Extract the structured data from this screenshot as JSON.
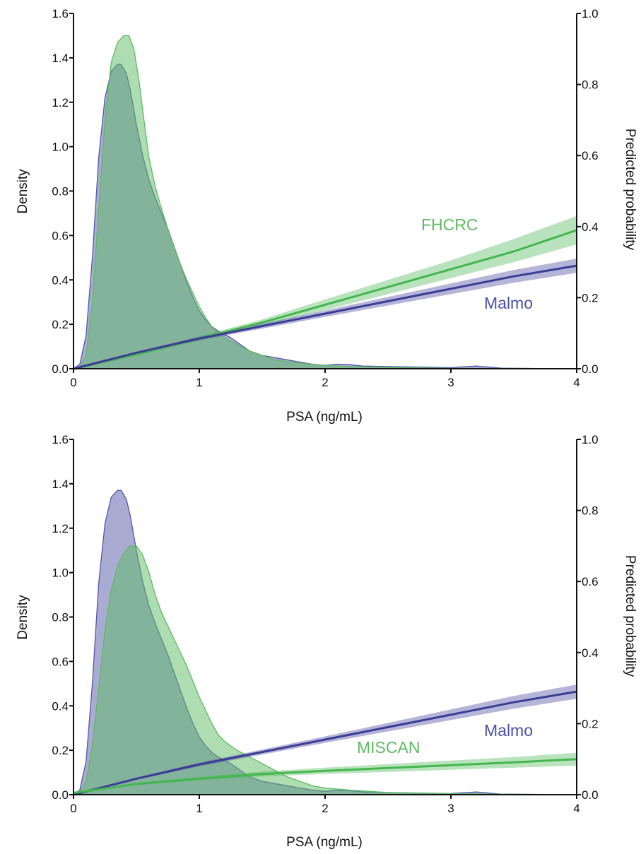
{
  "chart_data": [
    {
      "type": "area",
      "title": "",
      "xlabel": "PSA (ng/mL)",
      "ylabel": "Density",
      "y2label": "Predicted probability",
      "xlim": [
        0,
        4
      ],
      "ylim": [
        0,
        1.6
      ],
      "y2lim": [
        0,
        1.0
      ],
      "xticks": [
        "0",
        "1",
        "2",
        "3",
        "4"
      ],
      "yticks": [
        "0.0",
        "0.2",
        "0.4",
        "0.6",
        "0.8",
        "1.0",
        "1.2",
        "1.4",
        "1.6"
      ],
      "y2ticks": [
        "0.0",
        "0.2",
        "0.4",
        "0.6",
        "0.8",
        "1.0"
      ],
      "grid": false,
      "density_series": [
        {
          "name": "Malmo",
          "color": "#5558a8",
          "x": [
            0,
            0.05,
            0.1,
            0.15,
            0.2,
            0.25,
            0.3,
            0.35,
            0.38,
            0.42,
            0.45,
            0.5,
            0.55,
            0.6,
            0.65,
            0.7,
            0.75,
            0.8,
            0.85,
            0.9,
            0.95,
            1.0,
            1.05,
            1.1,
            1.15,
            1.2,
            1.25,
            1.3,
            1.35,
            1.4,
            1.5,
            1.6,
            1.7,
            1.8,
            1.9,
            2.0,
            2.1,
            2.2,
            2.3,
            2.5,
            2.7,
            3.0,
            3.2,
            3.4,
            3.7,
            4.0
          ],
          "y": [
            0.0,
            0.02,
            0.15,
            0.5,
            0.95,
            1.22,
            1.34,
            1.37,
            1.37,
            1.33,
            1.26,
            1.1,
            0.96,
            0.85,
            0.77,
            0.7,
            0.63,
            0.55,
            0.47,
            0.39,
            0.32,
            0.26,
            0.22,
            0.19,
            0.17,
            0.155,
            0.14,
            0.12,
            0.1,
            0.08,
            0.06,
            0.05,
            0.04,
            0.03,
            0.02,
            0.015,
            0.02,
            0.018,
            0.012,
            0.01,
            0.008,
            0.005,
            0.012,
            0.003,
            0.001,
            0.0
          ]
        },
        {
          "name": "FHCRC",
          "color": "#5dbb63",
          "x": [
            0,
            0.05,
            0.1,
            0.15,
            0.2,
            0.25,
            0.3,
            0.35,
            0.4,
            0.44,
            0.48,
            0.52,
            0.56,
            0.6,
            0.65,
            0.7,
            0.75,
            0.8,
            0.85,
            0.9,
            0.95,
            1.0,
            1.05,
            1.1,
            1.15,
            1.2,
            1.3,
            1.4,
            1.5,
            1.6,
            1.8,
            2.0,
            2.2,
            2.5,
            3.0,
            3.5,
            4.0
          ],
          "y": [
            0.0,
            0.01,
            0.06,
            0.3,
            0.72,
            1.12,
            1.38,
            1.47,
            1.5,
            1.5,
            1.44,
            1.3,
            1.12,
            0.95,
            0.82,
            0.72,
            0.63,
            0.55,
            0.47,
            0.4,
            0.34,
            0.28,
            0.23,
            0.19,
            0.16,
            0.14,
            0.11,
            0.08,
            0.06,
            0.04,
            0.025,
            0.015,
            0.01,
            0.005,
            0.002,
            0.001,
            0.0
          ]
        }
      ],
      "probability_series": [
        {
          "name": "FHCRC",
          "color": "#45b64f",
          "x": [
            0,
            0.5,
            1.0,
            1.5,
            2.0,
            2.5,
            3.0,
            3.5,
            4.0
          ],
          "y": [
            0.0,
            0.04,
            0.085,
            0.13,
            0.18,
            0.23,
            0.28,
            0.33,
            0.39
          ],
          "lower": [
            0.0,
            0.037,
            0.079,
            0.121,
            0.165,
            0.21,
            0.255,
            0.3,
            0.35
          ],
          "upper": [
            0.0,
            0.043,
            0.091,
            0.139,
            0.195,
            0.25,
            0.305,
            0.365,
            0.43
          ]
        },
        {
          "name": "Malmo",
          "color": "#3c3c97",
          "x": [
            0,
            0.5,
            1.0,
            1.5,
            2.0,
            2.5,
            3.0,
            3.5,
            4.0
          ],
          "y": [
            0.0,
            0.045,
            0.085,
            0.12,
            0.155,
            0.19,
            0.225,
            0.26,
            0.29
          ],
          "lower": [
            0.0,
            0.042,
            0.08,
            0.113,
            0.146,
            0.178,
            0.21,
            0.242,
            0.27
          ],
          "upper": [
            0.0,
            0.048,
            0.09,
            0.127,
            0.164,
            0.202,
            0.24,
            0.278,
            0.31
          ]
        }
      ],
      "labels": [
        {
          "text": "FHCRC",
          "color": "#5dbb63"
        },
        {
          "text": "Malmo",
          "color": "#4b4fa5"
        }
      ]
    },
    {
      "type": "area",
      "title": "",
      "xlabel": "PSA (ng/mL)",
      "ylabel": "Density",
      "y2label": "Predicted probability",
      "xlim": [
        0,
        4
      ],
      "ylim": [
        0,
        1.6
      ],
      "y2lim": [
        0,
        1.0
      ],
      "xticks": [
        "0",
        "1",
        "2",
        "3",
        "4"
      ],
      "yticks": [
        "0.0",
        "0.2",
        "0.4",
        "0.6",
        "0.8",
        "1.0",
        "1.2",
        "1.4",
        "1.6"
      ],
      "y2ticks": [
        "0.0",
        "0.2",
        "0.4",
        "0.6",
        "0.8",
        "1.0"
      ],
      "grid": false,
      "density_series": [
        {
          "name": "Malmo",
          "color": "#5558a8",
          "x": [
            0,
            0.05,
            0.1,
            0.15,
            0.2,
            0.25,
            0.3,
            0.35,
            0.38,
            0.42,
            0.45,
            0.5,
            0.55,
            0.6,
            0.65,
            0.7,
            0.75,
            0.8,
            0.85,
            0.9,
            0.95,
            1.0,
            1.05,
            1.1,
            1.15,
            1.2,
            1.25,
            1.3,
            1.35,
            1.4,
            1.5,
            1.6,
            1.7,
            1.8,
            1.9,
            2.0,
            2.1,
            2.2,
            2.3,
            2.5,
            2.7,
            3.0,
            3.2,
            3.4,
            3.7,
            4.0
          ],
          "y": [
            0.0,
            0.02,
            0.15,
            0.5,
            0.95,
            1.22,
            1.34,
            1.37,
            1.37,
            1.33,
            1.26,
            1.1,
            0.96,
            0.85,
            0.77,
            0.7,
            0.63,
            0.55,
            0.47,
            0.39,
            0.32,
            0.26,
            0.22,
            0.19,
            0.17,
            0.155,
            0.14,
            0.12,
            0.1,
            0.08,
            0.06,
            0.05,
            0.04,
            0.03,
            0.02,
            0.015,
            0.02,
            0.018,
            0.012,
            0.01,
            0.008,
            0.005,
            0.012,
            0.003,
            0.001,
            0.0
          ]
        },
        {
          "name": "MISCAN",
          "color": "#5dbb63",
          "x": [
            0,
            0.05,
            0.1,
            0.15,
            0.2,
            0.25,
            0.3,
            0.35,
            0.4,
            0.45,
            0.5,
            0.55,
            0.6,
            0.65,
            0.7,
            0.75,
            0.8,
            0.85,
            0.9,
            0.95,
            1.0,
            1.05,
            1.1,
            1.15,
            1.2,
            1.3,
            1.4,
            1.5,
            1.6,
            1.7,
            1.8,
            1.9,
            2.0,
            2.2,
            2.5,
            3.0,
            3.5,
            4.0
          ],
          "y": [
            0.0,
            0.01,
            0.06,
            0.22,
            0.48,
            0.74,
            0.92,
            1.03,
            1.09,
            1.12,
            1.12,
            1.08,
            1.0,
            0.9,
            0.82,
            0.76,
            0.7,
            0.64,
            0.58,
            0.51,
            0.44,
            0.38,
            0.32,
            0.27,
            0.24,
            0.2,
            0.17,
            0.14,
            0.11,
            0.08,
            0.06,
            0.04,
            0.03,
            0.02,
            0.01,
            0.004,
            0.002,
            0.0
          ]
        }
      ],
      "probability_series": [
        {
          "name": "Malmo",
          "color": "#3c3c97",
          "x": [
            0,
            0.5,
            1.0,
            1.5,
            2.0,
            2.5,
            3.0,
            3.5,
            4.0
          ],
          "y": [
            0.0,
            0.045,
            0.085,
            0.12,
            0.155,
            0.19,
            0.225,
            0.26,
            0.29
          ],
          "lower": [
            0.0,
            0.042,
            0.08,
            0.113,
            0.146,
            0.178,
            0.21,
            0.242,
            0.27
          ],
          "upper": [
            0.0,
            0.048,
            0.09,
            0.127,
            0.164,
            0.202,
            0.24,
            0.278,
            0.31
          ]
        },
        {
          "name": "MISCAN",
          "color": "#45b64f",
          "x": [
            0,
            0.5,
            1.0,
            1.5,
            2.0,
            2.5,
            3.0,
            3.5,
            4.0
          ],
          "y": [
            0.005,
            0.03,
            0.045,
            0.058,
            0.067,
            0.075,
            0.083,
            0.091,
            0.1
          ],
          "lower": [
            0.004,
            0.027,
            0.04,
            0.051,
            0.058,
            0.064,
            0.07,
            0.076,
            0.082
          ],
          "upper": [
            0.006,
            0.033,
            0.05,
            0.065,
            0.076,
            0.086,
            0.096,
            0.106,
            0.118
          ]
        }
      ],
      "labels": [
        {
          "text": "Malmo",
          "color": "#4b4fa5"
        },
        {
          "text": "MISCAN",
          "color": "#5dbb63"
        }
      ]
    }
  ]
}
